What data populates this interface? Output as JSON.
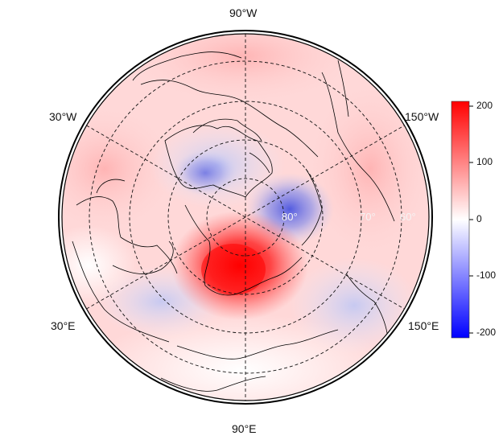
{
  "map": {
    "projection": "north-polar-stereographic",
    "longitude_labels": {
      "top": "90°W",
      "bottom": "90°E",
      "upper_left": "30°W",
      "lower_left": "30°E",
      "upper_right": "150°W",
      "lower_right": "150°E"
    },
    "latitude_labels": [
      "80°",
      "70°",
      "60°"
    ],
    "anomaly_features": [
      {
        "label": "positive",
        "color": "#ff0000",
        "intensity": 0.95
      },
      {
        "label": "negative",
        "color": "#2020e0",
        "intensity": 0.55
      }
    ]
  },
  "colorbar": {
    "ticks": [
      "200",
      "100",
      "0",
      "-100",
      "-200"
    ],
    "range": [
      -215,
      215
    ],
    "colors": {
      "high": "#ff0000",
      "mid": "#ffffff",
      "low": "#0000ff"
    }
  }
}
